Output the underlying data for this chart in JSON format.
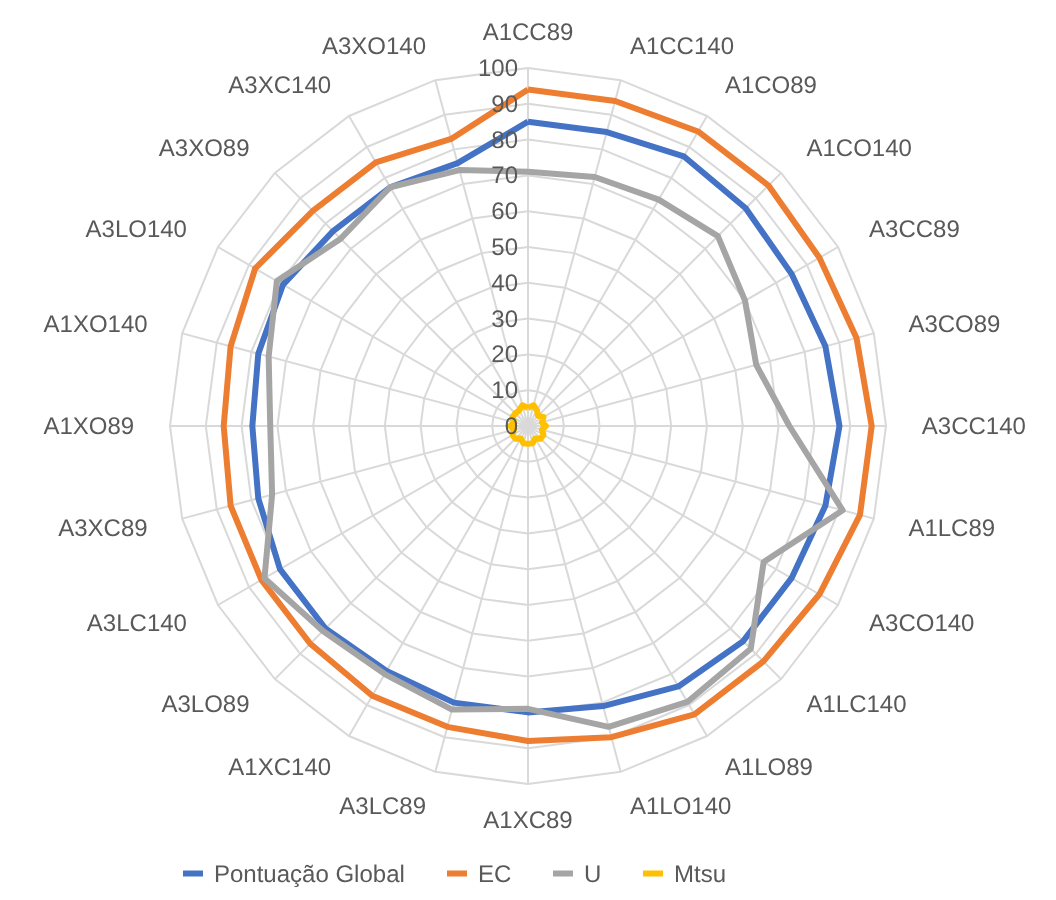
{
  "chart_data": {
    "type": "radar",
    "categories": [
      "A1CC89",
      "A1CC140",
      "A1CO89",
      "A1CO140",
      "A3CC89",
      "A3CO89",
      "A3CC140",
      "A1LC89",
      "A3CO140",
      "A1LC140",
      "A1LO89",
      "A1LO140",
      "A1XC89",
      "A3LC89",
      "A1XC140",
      "A3LO89",
      "A3LC140",
      "A3XC89",
      "A1XO89",
      "A1XO140",
      "A3LO140",
      "A3XO89",
      "A3XC140",
      "A3XO140"
    ],
    "series": [
      {
        "name": "Pontuação Global",
        "color": "#4472c4",
        "values": [
          85,
          85,
          87,
          86,
          85,
          86,
          87,
          86,
          85,
          85,
          84,
          81,
          80,
          80,
          79,
          80,
          80,
          78,
          77,
          78,
          79,
          77,
          77,
          76
        ]
      },
      {
        "name": "EC",
        "color": "#ed7d31",
        "values": [
          94,
          94,
          95,
          95,
          94,
          95,
          96,
          96,
          94,
          93,
          93,
          90,
          88,
          87,
          87,
          86,
          86,
          86,
          85,
          86,
          88,
          85,
          85,
          83
        ]
      },
      {
        "name": "U",
        "color": "#a5a5a5",
        "values": [
          71,
          72,
          73,
          75,
          70,
          66,
          73,
          91,
          76,
          88,
          89,
          87,
          79,
          82,
          80,
          81,
          85,
          74,
          72,
          75,
          81,
          74,
          77,
          74
        ]
      },
      {
        "name": "Mtsu",
        "color": "#ffc000",
        "values": [
          5,
          6,
          5,
          4,
          5,
          4,
          5,
          4,
          5,
          5,
          4,
          5,
          5,
          5,
          4,
          5,
          5,
          4,
          5,
          4,
          5,
          5,
          5,
          6
        ]
      }
    ],
    "ylim": [
      0,
      100
    ],
    "yticks": [
      0,
      10,
      20,
      30,
      40,
      50,
      60,
      70,
      80,
      90,
      100
    ],
    "grid": true,
    "legend": "bottom"
  }
}
